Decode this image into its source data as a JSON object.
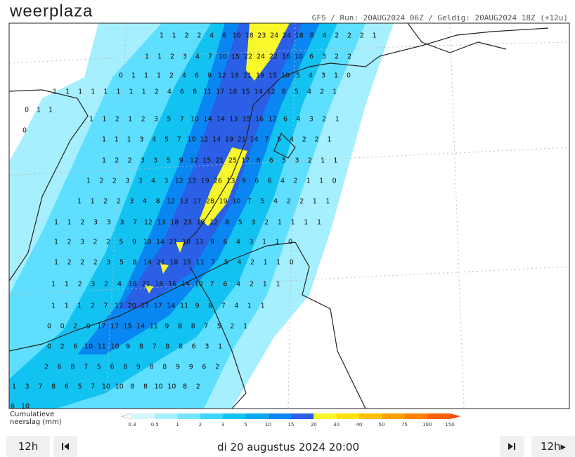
{
  "header": {
    "logo": "weerplaza",
    "run_info": "GFS / Run: 20AUG2024 06Z / Geldig: 20AUG2024 18Z (+12u)"
  },
  "map": {
    "grid_rows": [
      [
        1,
        1,
        2,
        2,
        4,
        6,
        10,
        18,
        23,
        24,
        24,
        18,
        8,
        4,
        2,
        2,
        2,
        1
      ],
      [
        1,
        1,
        2,
        3,
        4,
        7,
        10,
        15,
        22,
        24,
        22,
        16,
        10,
        6,
        3,
        2,
        2
      ],
      [
        0,
        1,
        1,
        1,
        2,
        4,
        6,
        9,
        12,
        18,
        21,
        19,
        15,
        10,
        5,
        4,
        3,
        1,
        0
      ],
      [
        1,
        1,
        1,
        1,
        1,
        1,
        1,
        1,
        2,
        4,
        6,
        8,
        11,
        17,
        18,
        15,
        14,
        12,
        8,
        5,
        4,
        2,
        1
      ],
      [
        0,
        1,
        1
      ],
      [
        1,
        1,
        2,
        1,
        2,
        3,
        5,
        7,
        10,
        14,
        14,
        13,
        15,
        16,
        12,
        6,
        4,
        3,
        2,
        1
      ],
      [
        0
      ],
      [
        1,
        1,
        1,
        3,
        4,
        5,
        7,
        10,
        12,
        14,
        19,
        21,
        14,
        7,
        5,
        4,
        2,
        2,
        1
      ],
      [
        1,
        2,
        2,
        3,
        3,
        5,
        9,
        12,
        15,
        21,
        25,
        17,
        8,
        6,
        5,
        3,
        2,
        1,
        1
      ],
      [
        1,
        2,
        2,
        3,
        3,
        4,
        3,
        12,
        13,
        19,
        26,
        13,
        9,
        6,
        6,
        4,
        2,
        1,
        1,
        0
      ],
      [
        1,
        1,
        2,
        2,
        3,
        4,
        8,
        12,
        13,
        17,
        28,
        19,
        10,
        7,
        5,
        4,
        2,
        2,
        1,
        1
      ],
      [
        1,
        1,
        2,
        3,
        3,
        3,
        7,
        12,
        13,
        18,
        23,
        18,
        12,
        8,
        5,
        3,
        2,
        1,
        1,
        1,
        1
      ],
      [
        1,
        2,
        3,
        2,
        2,
        5,
        9,
        10,
        14,
        21,
        18,
        13,
        9,
        6,
        4,
        3,
        1,
        1,
        0
      ],
      [
        1,
        2,
        2,
        2,
        3,
        5,
        8,
        14,
        21,
        18,
        15,
        11,
        7,
        5,
        4,
        2,
        1,
        1,
        0
      ],
      [
        1,
        1,
        2,
        3,
        2,
        4,
        18,
        21,
        18,
        16,
        14,
        10,
        7,
        6,
        4,
        2,
        1,
        1
      ],
      [
        1,
        1,
        1,
        2,
        7,
        17,
        20,
        17,
        17,
        14,
        11,
        9,
        8,
        7,
        4,
        1,
        1
      ],
      [
        0,
        0,
        2,
        9,
        17,
        17,
        15,
        14,
        11,
        9,
        8,
        8,
        7,
        5,
        2,
        1
      ],
      [
        0,
        2,
        6,
        10,
        11,
        10,
        9,
        8,
        7,
        8,
        8,
        6,
        3,
        1
      ],
      [
        2,
        6,
        8,
        7,
        5,
        6,
        8,
        9,
        8,
        8,
        9,
        9,
        6,
        2
      ],
      [
        1,
        3,
        7,
        8,
        6,
        5,
        7,
        10,
        10,
        8,
        8,
        10,
        10,
        8,
        2
      ],
      [
        6,
        10
      ]
    ]
  },
  "legend": {
    "title": "Cumulatieve neerslag (mm)",
    "ticks": [
      0.3,
      0.5,
      1,
      2,
      3,
      5,
      10,
      15,
      20,
      30,
      40,
      50,
      75,
      100,
      150
    ],
    "colors": [
      "#ffffff",
      "#d2f7ff",
      "#a6efff",
      "#74e4ff",
      "#3fd6ff",
      "#12c3f2",
      "#08a7ee",
      "#0a86f2",
      "#2a5fe6",
      "#f8f82a",
      "#ffe000",
      "#ffc000",
      "#ffa000",
      "#ff8000",
      "#ff6000",
      "#ff4a00"
    ]
  },
  "footer": {
    "prev_button": "12h",
    "date": "di 20 augustus 2024 20:00",
    "next_button": "12h"
  }
}
